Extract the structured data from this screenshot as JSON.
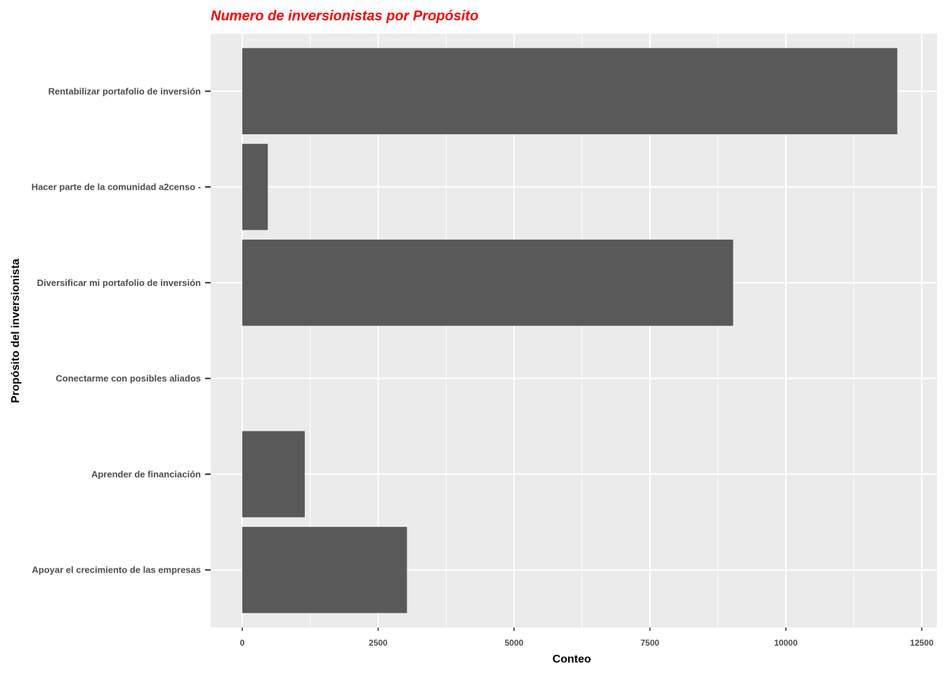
{
  "chart_data": {
    "type": "bar",
    "orientation": "horizontal",
    "title": "Numero de inversionistas por Propósito",
    "xlabel": "Conteo",
    "ylabel": "Propósito del inversionista",
    "categories": [
      "Apoyar el crecimiento de las empresas",
      "Aprender de financiación",
      "Conectarme con posibles aliados",
      "Diversificar mi portafolio de inversión",
      "Hacer parte de la comunidad a2censo -",
      "Rentabilizar portafolio de inversión"
    ],
    "values": [
      3030,
      1150,
      0,
      9030,
      470,
      12050
    ],
    "xlim": [
      -580,
      12780
    ],
    "xticks": [
      0,
      2500,
      5000,
      7500,
      10000,
      12500
    ],
    "xtick_labels": [
      "0",
      "2500",
      "5000",
      "7500",
      "10000",
      "12500"
    ],
    "grid": true,
    "colors": {
      "bar": "#595959",
      "panel": "#ebebeb",
      "grid": "#ffffff",
      "title": "#ff0000",
      "tick_text": "#4d4d4d",
      "axis_title": "#000000"
    }
  }
}
